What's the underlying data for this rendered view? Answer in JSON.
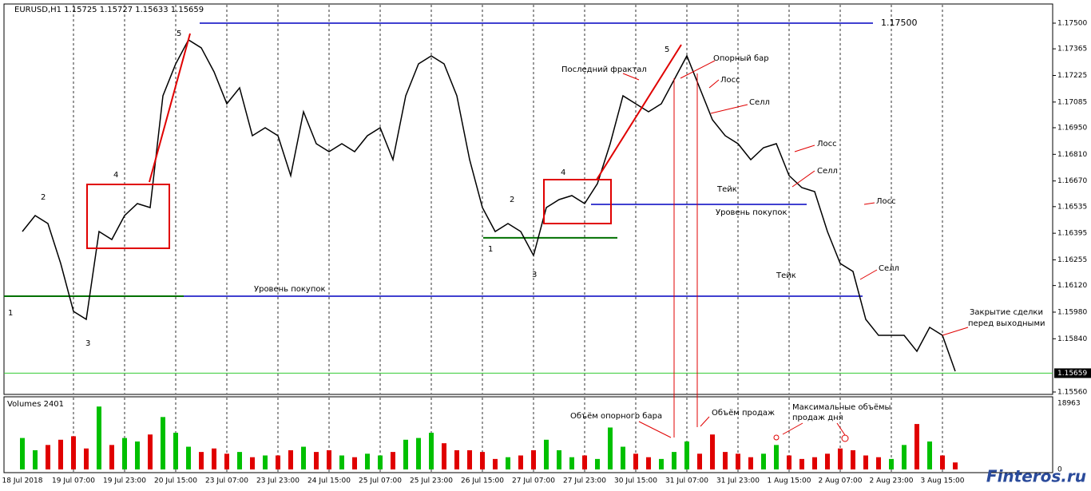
{
  "chart_data": {
    "type": "line",
    "title": "EURUSD,H1  1.15725 1.15727 1.15633 1.15659",
    "volume_title": "Volumes 2401",
    "watermark": "Finteros.ru",
    "last_price": {
      "value": 1.15659,
      "label": "1.15659"
    },
    "categories": [
      "18 Jul 2018",
      null,
      null,
      null,
      "19 Jul 07:00",
      null,
      null,
      null,
      "19 Jul 23:00",
      null,
      null,
      null,
      "20 Jul 15:00",
      null,
      null,
      null,
      "23 Jul 07:00",
      null,
      null,
      null,
      "23 Jul 23:00",
      null,
      null,
      null,
      "24 Jul 15:00",
      null,
      null,
      null,
      "25 Jul 07:00",
      null,
      null,
      null,
      "25 Jul 23:00",
      null,
      null,
      null,
      "26 Jul 15:00",
      null,
      null,
      null,
      "27 Jul 07:00",
      null,
      null,
      null,
      "27 Jul 23:00",
      null,
      null,
      null,
      "30 Jul 15:00",
      null,
      null,
      null,
      "31 Jul 07:00",
      null,
      null,
      null,
      "31 Jul 23:00",
      null,
      null,
      null,
      "1 Aug 15:00",
      null,
      null,
      null,
      "2 Aug 07:00",
      null,
      null,
      null,
      "2 Aug 23:00",
      null,
      null,
      null,
      "3 Aug 15:00",
      null
    ],
    "series": [
      {
        "name": "EURUSD",
        "color": "#000000",
        "values": [
          1.16404,
          1.16488,
          1.16446,
          1.16236,
          1.15984,
          1.15942,
          1.16404,
          1.16362,
          1.16488,
          1.16551,
          1.1653,
          1.17118,
          1.17286,
          1.17412,
          1.1737,
          1.17244,
          1.17076,
          1.1716,
          1.16908,
          1.1695,
          1.16908,
          1.16698,
          1.17034,
          1.16866,
          1.16824,
          1.16866,
          1.16824,
          1.16908,
          1.1695,
          1.16782,
          1.17118,
          1.17286,
          1.17328,
          1.17286,
          1.17118,
          1.16782,
          1.1653,
          1.16404,
          1.16446,
          1.16404,
          1.16278,
          1.1653,
          1.16572,
          1.16593,
          1.16551,
          1.16656,
          1.16866,
          1.17118,
          1.17076,
          1.17034,
          1.17076,
          1.17202,
          1.17328,
          1.1716,
          1.16992,
          1.16908,
          1.16866,
          1.16782,
          1.16845,
          1.16866,
          1.16698,
          1.16635,
          1.16614,
          1.16404,
          1.16236,
          1.16194,
          1.15942,
          1.15858,
          1.15858,
          1.15858,
          1.15774,
          1.159,
          1.15858,
          1.15669
        ]
      },
      {
        "name": "Volumes",
        "axis": "y2",
        "values": [
          9000,
          5500,
          7000,
          8500,
          9500,
          6000,
          18000,
          7000,
          9000,
          8000,
          10000,
          15000,
          10500,
          6500,
          5000,
          6000,
          4500,
          5000,
          3500,
          4000,
          4000,
          5500,
          6500,
          5000,
          5500,
          4000,
          3500,
          4500,
          4000,
          5000,
          8500,
          9000,
          10500,
          7500,
          5500,
          5500,
          5000,
          3000,
          3500,
          4000,
          5500,
          8500,
          5500,
          3500,
          4000,
          3000,
          12000,
          6500,
          4500,
          3500,
          3000,
          5000,
          8000,
          4500,
          10000,
          5000,
          4500,
          3500,
          4500,
          7000,
          4000,
          3000,
          3500,
          4500,
          6000,
          5500,
          4000,
          3500,
          3000,
          7000,
          13000,
          8000,
          4000,
          2000
        ]
      }
    ],
    "up_color": "#00c000",
    "down_color": "#e00000",
    "ylim": [
      1.1556,
      1.175
    ],
    "yticks": [
      {
        "value": 1.175,
        "label": "1.17500"
      },
      1.17365,
      1.17225,
      1.17085,
      {
        "value": 1.1695,
        "label": "1.16950"
      },
      {
        "value": 1.1681,
        "label": "1.16810"
      },
      {
        "value": 1.1667,
        "label": "1.16670"
      },
      1.16535,
      1.16395,
      1.16255,
      {
        "value": 1.1612,
        "label": "1.16120"
      },
      {
        "value": 1.1598,
        "label": "1.15980"
      },
      {
        "value": 1.1584,
        "label": "1.15840"
      },
      {
        "value": 1.1556,
        "label": "1.15560"
      }
    ],
    "y2lim": [
      0,
      18963
    ],
    "y2ticks": [
      18963,
      0
    ],
    "levels": [
      {
        "value": 1.175,
        "label": "1.17500",
        "color": "#0000c0"
      },
      {
        "value": 1.16064,
        "color": "#0000c0"
      },
      {
        "value": 1.16547,
        "color": "#0000c0"
      },
      {
        "value": 1.16064,
        "color": "#007000"
      },
      {
        "value": 1.16371,
        "color": "#007000"
      }
    ],
    "annotations": [
      "5",
      "4",
      "2",
      "1",
      "3",
      "4",
      "2",
      "1",
      "3",
      "5",
      "Последний фрактал",
      "Опорный бар",
      "Лосс",
      "Селл",
      "Лосс",
      "Селл",
      "Лосс",
      "Селл",
      "Тейк",
      "Тейк",
      "Уровень покупок",
      "Уровень покупок",
      "Закрытие сделки",
      "перед выходными",
      "Объём опорного бара",
      "Объём продаж",
      "Максимальные объёмы",
      "продаж дня"
    ]
  }
}
